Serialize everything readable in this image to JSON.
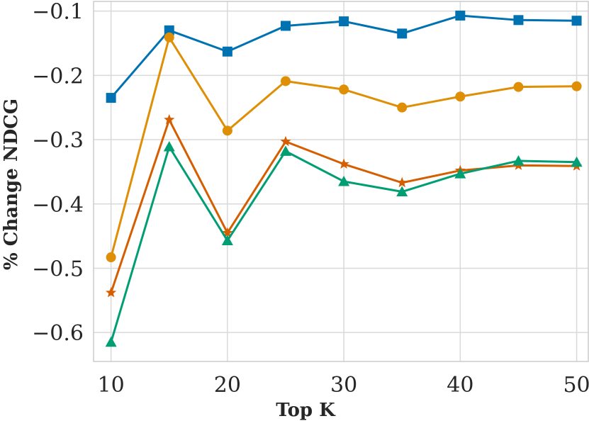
{
  "chart_data": {
    "type": "line",
    "title": "",
    "xlabel": "Top K",
    "ylabel": "% Change NDCG",
    "x": [
      10,
      15,
      20,
      25,
      30,
      35,
      40,
      45,
      50
    ],
    "xlim": [
      8.5,
      51
    ],
    "ylim": [
      -0.645,
      -0.085
    ],
    "xticks": [
      10,
      20,
      30,
      40,
      50
    ],
    "yticks": [
      -0.6,
      -0.5,
      -0.4,
      -0.3,
      -0.2,
      -0.1
    ],
    "ytick_labels": [
      "−0.6",
      "−0.5",
      "−0.4",
      "−0.3",
      "−0.2",
      "−0.1"
    ],
    "grid": true,
    "series": [
      {
        "name": "blue-square",
        "color": "#0072b2",
        "marker": "square",
        "values": [
          -0.235,
          -0.13,
          -0.163,
          -0.123,
          -0.116,
          -0.135,
          -0.107,
          -0.114,
          -0.115
        ]
      },
      {
        "name": "orange-circle",
        "color": "#de8f05",
        "marker": "circle",
        "values": [
          -0.483,
          -0.141,
          -0.286,
          -0.209,
          -0.222,
          -0.25,
          -0.233,
          -0.218,
          -0.217
        ]
      },
      {
        "name": "red-star",
        "color": "#d55e00",
        "marker": "star",
        "values": [
          -0.538,
          -0.269,
          -0.445,
          -0.303,
          -0.338,
          -0.367,
          -0.348,
          -0.34,
          -0.341
        ]
      },
      {
        "name": "green-triangle",
        "color": "#029e73",
        "marker": "triangle",
        "values": [
          -0.615,
          -0.311,
          -0.457,
          -0.318,
          -0.365,
          -0.381,
          -0.353,
          -0.333,
          -0.335
        ]
      }
    ]
  }
}
